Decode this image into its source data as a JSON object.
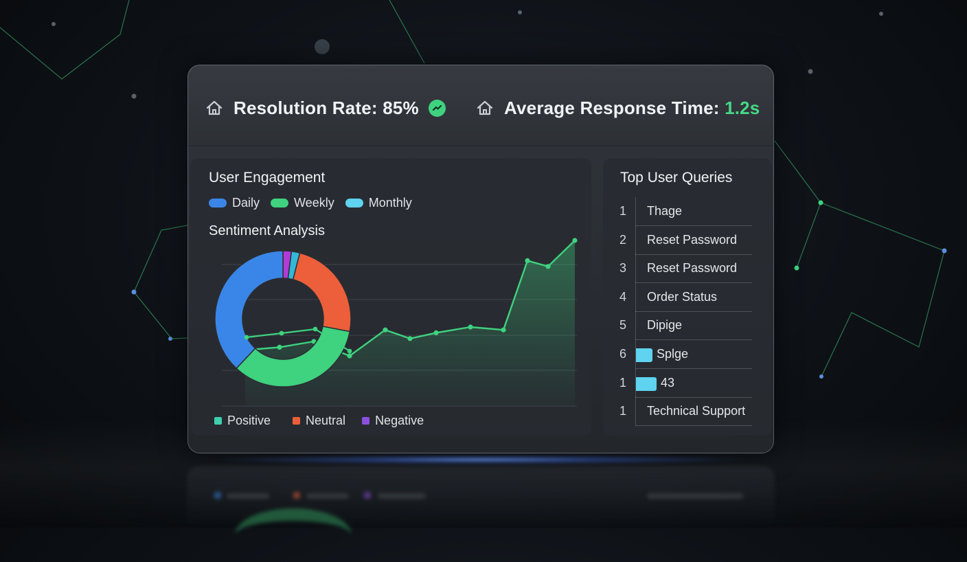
{
  "header": {
    "metric_1": {
      "icon": "home-icon",
      "label": "Resolution Rate: 85%",
      "trend_icon": "trend-up-icon",
      "trend_color": "#3fd27f"
    },
    "metric_2": {
      "icon": "home-icon",
      "label": "Average Response Time: ",
      "value": "1.2s",
      "value_color": "#47d787"
    }
  },
  "engagement": {
    "title": "User Engagement",
    "legend": [
      {
        "label": "Daily",
        "color": "#3a86e8"
      },
      {
        "label": "Weekly",
        "color": "#3fd27f"
      },
      {
        "label": "Monthly",
        "color": "#5fd3f0"
      }
    ]
  },
  "sentiment": {
    "title": "Sentiment Analysis",
    "legend": [
      {
        "label": "Positive",
        "color": "#3ecfb0"
      },
      {
        "label": "Neutral",
        "color": "#ec5f3a"
      },
      {
        "label": "Negative",
        "color": "#8b4fe0"
      }
    ]
  },
  "chart_data": [
    {
      "type": "pie",
      "variant": "donut",
      "slices": [
        {
          "color": "#b13bd6",
          "value": 2
        },
        {
          "color": "#34b8d8",
          "value": 2
        },
        {
          "color": "#ec5f3a",
          "value": 24
        },
        {
          "color": "#3fd27f",
          "value": 34
        },
        {
          "color": "#3a86e8",
          "value": 38
        }
      ]
    },
    {
      "type": "area",
      "color": "#3fd27f",
      "values": [
        7,
        8,
        10,
        5,
        14,
        11,
        13,
        15,
        14,
        38,
        36,
        45
      ],
      "ylim": [
        0,
        50
      ],
      "grid": true
    }
  ],
  "top_queries": {
    "title": "Top User Queries",
    "items": [
      {
        "num": "1",
        "label": "Thage",
        "bar": 0
      },
      {
        "num": "2",
        "label": "Reset Password",
        "bar": 0
      },
      {
        "num": "3",
        "label": "Reset Password",
        "bar": 0
      },
      {
        "num": "4",
        "label": "Order Status",
        "bar": 0
      },
      {
        "num": "5",
        "label": "Dipige",
        "bar": 0
      },
      {
        "num": "6",
        "label": "Splge",
        "bar": 0.16,
        "bar_color": "#5fd3f0"
      },
      {
        "num": "1",
        "label": "43",
        "bar": 0.2,
        "bar_color": "#5fd3f0"
      },
      {
        "num": "1",
        "label": "Technical Support",
        "bar": 0
      }
    ]
  }
}
